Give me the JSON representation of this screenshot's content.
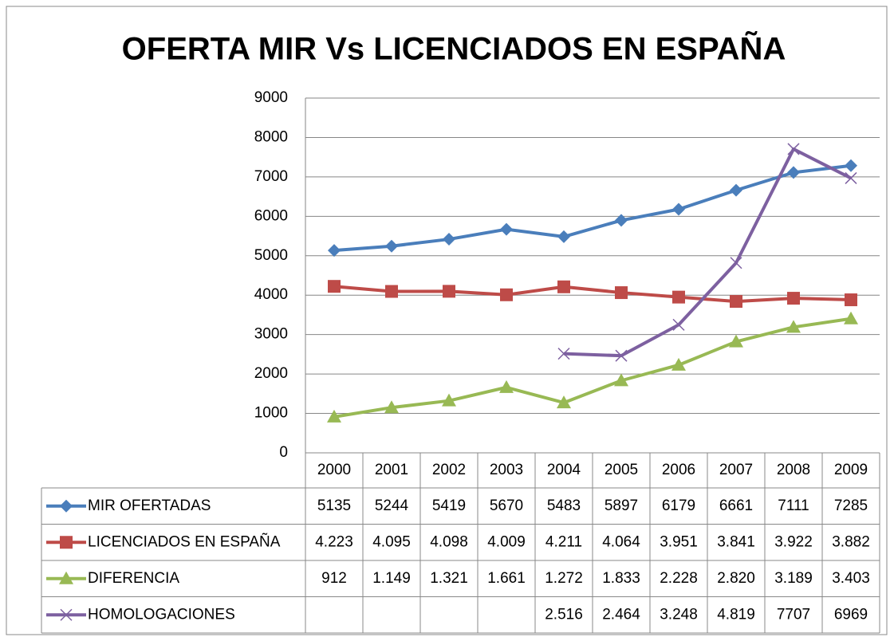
{
  "chart_data": {
    "type": "line",
    "title": "OFERTA MIR Vs LICENCIADOS EN ESPAÑA",
    "categories": [
      "2000",
      "2001",
      "2002",
      "2003",
      "2004",
      "2005",
      "2006",
      "2007",
      "2008",
      "2009"
    ],
    "ylim": [
      0,
      9000
    ],
    "yticks": [
      0,
      1000,
      2000,
      3000,
      4000,
      5000,
      6000,
      7000,
      8000,
      9000
    ],
    "grid": true,
    "series": [
      {
        "name": "MIR OFERTADAS",
        "color": "#4a7ebb",
        "marker": "diamond",
        "values": [
          5135,
          5244,
          5419,
          5670,
          5483,
          5897,
          6179,
          6661,
          7111,
          7285
        ]
      },
      {
        "name": "LICENCIADOS EN ESPAÑA",
        "color": "#be4b48",
        "marker": "square",
        "values": [
          4223,
          4095,
          4098,
          4009,
          4211,
          4064,
          3951,
          3841,
          3922,
          3882
        ],
        "value_labels": [
          "4.223",
          "4.095",
          "4.098",
          "4.009",
          "4.211",
          "4.064",
          "3.951",
          "3.841",
          "3.922",
          "3.882"
        ]
      },
      {
        "name": "DIFERENCIA",
        "color": "#98b954",
        "marker": "triangle",
        "values": [
          912,
          1149,
          1321,
          1661,
          1272,
          1833,
          2228,
          2820,
          3189,
          3403
        ],
        "value_labels": [
          "912",
          "1.149",
          "1.321",
          "1.661",
          "1.272",
          "1.833",
          "2.228",
          "2.820",
          "3.189",
          "3.403"
        ]
      },
      {
        "name": "HOMOLOGACIONES",
        "color": "#7d60a0",
        "marker": "x",
        "values": [
          null,
          null,
          null,
          null,
          2516,
          2464,
          3248,
          4819,
          7707,
          6969
        ],
        "value_labels": [
          null,
          null,
          null,
          null,
          "2.516",
          "2.464",
          "3.248",
          "4.819",
          "7707",
          "6969"
        ]
      }
    ]
  }
}
